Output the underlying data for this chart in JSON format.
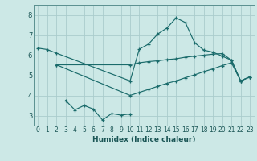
{
  "xlabel": "Humidex (Indice chaleur)",
  "bg_color": "#cce8e6",
  "grid_color": "#aacccc",
  "line_color": "#1a6b6b",
  "line1_x": [
    0,
    1,
    2,
    10,
    11,
    12,
    13,
    14,
    15,
    16,
    17,
    18,
    19,
    20,
    21,
    22,
    23
  ],
  "line1_y": [
    6.35,
    6.28,
    6.1,
    4.72,
    6.3,
    6.55,
    7.05,
    7.35,
    7.85,
    7.62,
    6.62,
    6.25,
    6.15,
    5.95,
    5.75,
    4.72,
    4.92
  ],
  "line2_x": [
    2,
    10,
    11,
    12,
    13,
    14,
    15,
    16,
    17,
    18,
    19,
    20,
    21,
    22,
    23
  ],
  "line2_y": [
    5.52,
    5.52,
    5.62,
    5.68,
    5.72,
    5.78,
    5.82,
    5.9,
    5.95,
    6.0,
    6.05,
    6.08,
    5.75,
    4.72,
    4.92
  ],
  "line3_x": [
    2,
    10,
    11,
    12,
    13,
    14,
    15,
    16,
    17,
    18,
    19,
    20,
    21,
    22,
    23
  ],
  "line3_y": [
    5.52,
    4.0,
    4.15,
    4.3,
    4.45,
    4.6,
    4.72,
    4.88,
    5.02,
    5.18,
    5.32,
    5.48,
    5.62,
    4.72,
    4.92
  ],
  "line4_x": [
    3,
    4,
    5,
    6,
    7,
    8,
    9,
    10
  ],
  "line4_y": [
    3.75,
    3.28,
    3.5,
    3.32,
    2.78,
    3.1,
    3.02,
    3.08
  ],
  "xlim": [
    -0.5,
    23.5
  ],
  "ylim": [
    2.5,
    8.5
  ],
  "yticks": [
    3,
    4,
    5,
    6,
    7,
    8
  ],
  "xticks": [
    0,
    1,
    2,
    3,
    4,
    5,
    6,
    7,
    8,
    9,
    10,
    11,
    12,
    13,
    14,
    15,
    16,
    17,
    18,
    19,
    20,
    21,
    22,
    23
  ],
  "xlabel_fontsize": 6.5,
  "tick_fontsize": 5.5,
  "ytick_fontsize": 6.0
}
